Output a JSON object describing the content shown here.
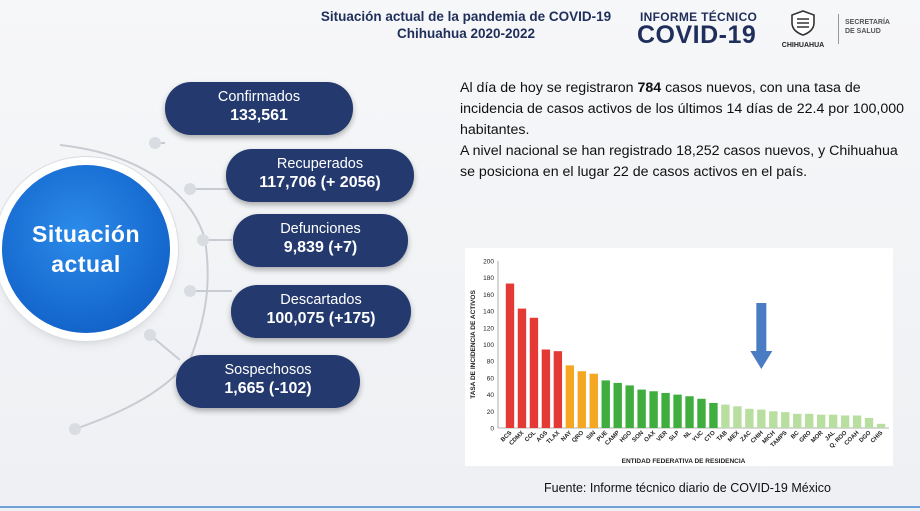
{
  "header": {
    "title_line1": "Situación actual de la pandemia de COVID-19",
    "title_line2": "Chihuahua 2020-2022",
    "informe_line1": "INFORME TÉCNICO",
    "informe_line2": "COVID-19",
    "logo_text": "CHIHUAHUA",
    "secretaria_line1": "SECRETARÍA",
    "secretaria_line2": "DE SALUD"
  },
  "hero": {
    "line1": "Situación",
    "line2": "actual"
  },
  "stats": [
    {
      "label": "Confirmados",
      "value": "133,561"
    },
    {
      "label": "Recuperados",
      "value": "117,706 (+ 2056)"
    },
    {
      "label": "Defunciones",
      "value": "9,839 (+7)"
    },
    {
      "label": "Descartados",
      "value": "100,075 (+175)"
    },
    {
      "label": "Sospechosos",
      "value": "1,665 (-102)"
    }
  ],
  "description": {
    "p1_pre": "Al día de hoy se registraron ",
    "p1_bold": "784",
    "p1_post": " casos nuevos, con una tasa de incidencia de casos activos de los últimos 14 días de 22.4 por 100,000 habitantes.",
    "p2": "A nivel nacional se han registrado 18,252 casos nuevos, y Chihuahua se posiciona en el lugar 22 de casos activos en el país."
  },
  "source": "Fuente: Informe técnico diario de COVID-19 México",
  "colors": {
    "navy": "#243a6e",
    "blue": "#1466cc",
    "red": "#e53935",
    "orange": "#f5a623",
    "green": "#3fae3f",
    "light_green": "#b9dfa0",
    "arrow": "#4a7cc4"
  },
  "chart_data": {
    "type": "bar",
    "ylabel": "TASA DE INCIDENCIA DE ACTIVOS",
    "xlabel": "ENTIDAD FEDERATIVA DE RESIDENCIA",
    "ylim": [
      0,
      200
    ],
    "yticks": [
      0,
      20,
      40,
      60,
      80,
      100,
      120,
      140,
      160,
      180,
      200
    ],
    "grid": false,
    "categories": [
      "BCS",
      "CDMX",
      "COL",
      "AGS",
      "TLAX",
      "NAY",
      "QRO",
      "SIN",
      "PUE",
      "CAMP",
      "HGO",
      "SON",
      "OAX",
      "VER",
      "SLP",
      "NL",
      "YUC",
      "CTO",
      "TAB",
      "MEX",
      "ZAC",
      "CHIH",
      "MICH",
      "TAMPS",
      "BC",
      "GRO",
      "MOR",
      "JAL",
      "Q. ROO",
      "COAH",
      "DGO",
      "CHIS"
    ],
    "values": [
      173,
      143,
      132,
      94,
      92,
      75,
      68,
      65,
      57,
      54,
      51,
      46,
      44,
      42,
      40,
      38,
      35,
      30,
      28,
      26,
      23,
      22,
      20,
      19,
      17,
      17,
      16,
      16,
      15,
      15,
      12,
      5
    ],
    "bar_colors": [
      "red",
      "red",
      "red",
      "red",
      "red",
      "orange",
      "orange",
      "orange",
      "green",
      "green",
      "green",
      "green",
      "green",
      "green",
      "green",
      "green",
      "green",
      "green",
      "light_green",
      "light_green",
      "light_green",
      "light_green",
      "light_green",
      "light_green",
      "light_green",
      "light_green",
      "light_green",
      "light_green",
      "light_green",
      "light_green",
      "light_green",
      "light_green"
    ],
    "annotation": {
      "type": "down-arrow",
      "points_to": "CHIH"
    }
  }
}
